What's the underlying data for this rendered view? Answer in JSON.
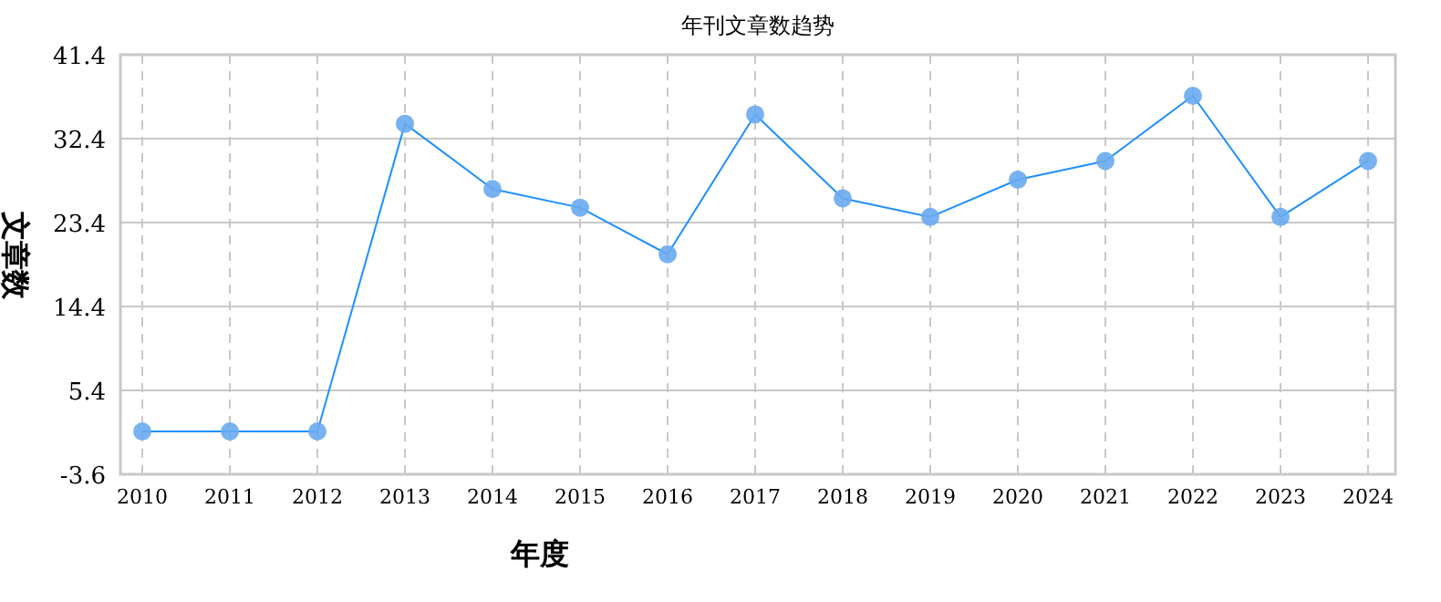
{
  "chart_data": {
    "type": "line",
    "title": "年刊文章数趋势",
    "xlabel": "年度",
    "ylabel": "文章数",
    "categories": [
      "2010",
      "2011",
      "2012",
      "2013",
      "2014",
      "2015",
      "2016",
      "2017",
      "2018",
      "2019",
      "2020",
      "2021",
      "2022",
      "2023",
      "2024"
    ],
    "series": [
      {
        "color": "#1e90ff",
        "values": [
          1,
          1,
          1,
          34,
          27,
          25,
          20,
          35,
          26,
          24,
          28,
          30,
          37,
          24,
          30
        ]
      }
    ],
    "ylim": [
      -3.6,
      41.4
    ],
    "yticks": [
      -3.6,
      5.4,
      14.4,
      23.4,
      32.4,
      41.4
    ],
    "grid": true,
    "marker": "circle",
    "line_style": "solid"
  }
}
